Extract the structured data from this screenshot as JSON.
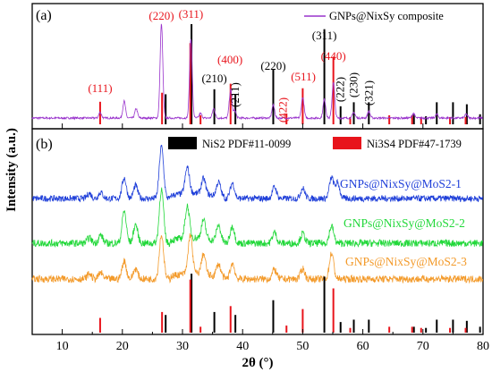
{
  "chart_data": {
    "type": "line",
    "xlabel": "2θ (°)",
    "ylabel": "Intensity (a.u.)",
    "xlim": [
      5,
      80
    ],
    "xticks": [
      "10",
      "20",
      "30",
      "40",
      "50",
      "60",
      "70",
      "80"
    ],
    "colors": {
      "composite": "#9933cc",
      "mos2_1": "#1f3fd9",
      "mos2_2": "#22d83a",
      "mos2_3": "#f39a2a",
      "nis2": "#000000",
      "ni3s4": "#e8141c"
    },
    "panel_a": {
      "label": "(a)",
      "series": [
        {
          "name": "GNPs@NixSy composite",
          "peaks": [
            [
              16.3,
              0.06
            ],
            [
              20.3,
              0.18
            ],
            [
              22.3,
              0.1
            ],
            [
              26.5,
              1.0
            ],
            [
              31.4,
              0.85
            ],
            [
              33.0,
              0.05
            ],
            [
              35.2,
              0.1
            ],
            [
              38.0,
              0.3
            ],
            [
              38.7,
              0.08
            ],
            [
              45.1,
              0.14
            ],
            [
              50.0,
              0.22
            ],
            [
              53.6,
              0.2
            ],
            [
              55.1,
              0.38
            ],
            [
              58.5,
              0.06
            ],
            [
              61.0,
              0.07
            ],
            [
              68.4,
              0.05
            ],
            [
              72.3,
              0.04
            ],
            [
              77.2,
              0.04
            ]
          ]
        }
      ],
      "annotations": [
        {
          "text": "(111)",
          "x": 16.3,
          "color": "red"
        },
        {
          "text": "(220)",
          "x": 26.5,
          "color": "red"
        },
        {
          "text": "(311)",
          "x": 31.4,
          "color": "red"
        },
        {
          "text": "(210)",
          "x": 35.3,
          "color": "black"
        },
        {
          "text": "(400)",
          "x": 37.9,
          "color": "red"
        },
        {
          "text": "(211)",
          "x": 38.8,
          "color": "black"
        },
        {
          "text": "(220)",
          "x": 45.1,
          "color": "black"
        },
        {
          "text": "(422)",
          "x": 47.3,
          "color": "red"
        },
        {
          "text": "(511)",
          "x": 50.1,
          "color": "red"
        },
        {
          "text": "(311)",
          "x": 53.6,
          "color": "black"
        },
        {
          "text": "(440)",
          "x": 55.1,
          "color": "red"
        },
        {
          "text": "(222)",
          "x": 56.3,
          "color": "black"
        },
        {
          "text": "(230)",
          "x": 58.5,
          "color": "black"
        },
        {
          "text": "(321)",
          "x": 61.0,
          "color": "black"
        }
      ]
    },
    "panel_b": {
      "label": "(b)",
      "series": [
        {
          "name": "GNPs@NixSy@MoS2-1",
          "peaks": [
            [
              14.5,
              0.1
            ],
            [
              16.4,
              0.12
            ],
            [
              20.3,
              0.4
            ],
            [
              22.2,
              0.25
            ],
            [
              26.5,
              1.0
            ],
            [
              30.8,
              0.5
            ],
            [
              33.5,
              0.3
            ],
            [
              36.0,
              0.28
            ],
            [
              38.3,
              0.3
            ],
            [
              45.3,
              0.22
            ],
            [
              50.0,
              0.2
            ],
            [
              54.8,
              0.4
            ],
            [
              55.8,
              0.3
            ]
          ]
        },
        {
          "name": "GNPs@NixSy@MoS2-2",
          "peaks": [
            [
              14.5,
              0.1
            ],
            [
              16.4,
              0.15
            ],
            [
              20.3,
              0.6
            ],
            [
              22.2,
              0.35
            ],
            [
              26.5,
              1.0
            ],
            [
              30.8,
              0.6
            ],
            [
              33.5,
              0.35
            ],
            [
              36.0,
              0.3
            ],
            [
              38.3,
              0.32
            ],
            [
              45.3,
              0.2
            ],
            [
              50.0,
              0.18
            ],
            [
              54.8,
              0.32
            ]
          ]
        },
        {
          "name": "GNPs@NixSy@MoS2-3",
          "peaks": [
            [
              14.5,
              0.1
            ],
            [
              16.4,
              0.12
            ],
            [
              20.3,
              0.35
            ],
            [
              22.2,
              0.2
            ],
            [
              26.5,
              0.85
            ],
            [
              31.3,
              0.75
            ],
            [
              33.5,
              0.4
            ],
            [
              36.0,
              0.25
            ],
            [
              38.3,
              0.3
            ],
            [
              45.3,
              0.18
            ],
            [
              50.0,
              0.2
            ],
            [
              54.8,
              0.5
            ]
          ]
        }
      ],
      "legend": [
        {
          "name": "NiS2 PDF#11-0099"
        },
        {
          "name": "Ni3S4 PDF#47-1739"
        }
      ],
      "references": {
        "NiS2": [
          [
            27.2,
            0.3
          ],
          [
            31.5,
            1.0
          ],
          [
            35.3,
            0.35
          ],
          [
            38.8,
            0.3
          ],
          [
            45.1,
            0.55
          ],
          [
            53.6,
            0.95
          ],
          [
            56.3,
            0.18
          ],
          [
            58.5,
            0.22
          ],
          [
            61.0,
            0.22
          ],
          [
            68.5,
            0.1
          ],
          [
            70.5,
            0.08
          ],
          [
            72.3,
            0.22
          ],
          [
            75.0,
            0.22
          ],
          [
            77.3,
            0.2
          ],
          [
            79.5,
            0.1
          ]
        ],
        "Ni3S4": [
          [
            16.3,
            0.25
          ],
          [
            26.6,
            0.35
          ],
          [
            31.3,
            0.9
          ],
          [
            33.0,
            0.1
          ],
          [
            38.0,
            0.45
          ],
          [
            47.3,
            0.12
          ],
          [
            50.0,
            0.4
          ],
          [
            55.1,
            0.75
          ],
          [
            57.9,
            0.08
          ],
          [
            64.4,
            0.1
          ],
          [
            68.2,
            0.1
          ],
          [
            69.7,
            0.08
          ],
          [
            74.5,
            0.08
          ],
          [
            77.1,
            0.08
          ]
        ]
      }
    }
  }
}
